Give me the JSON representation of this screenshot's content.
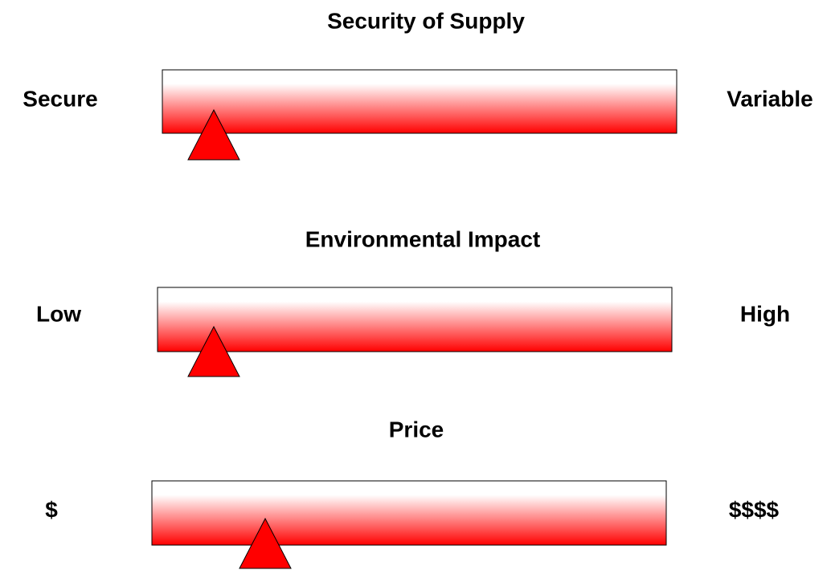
{
  "sliders": [
    {
      "title": "Security of Supply",
      "left": "Secure",
      "right": "Variable"
    },
    {
      "title": "Environmental Impact",
      "left": "Low",
      "right": "High"
    },
    {
      "title": "Price",
      "left": "$",
      "right": "$$$$"
    }
  ]
}
